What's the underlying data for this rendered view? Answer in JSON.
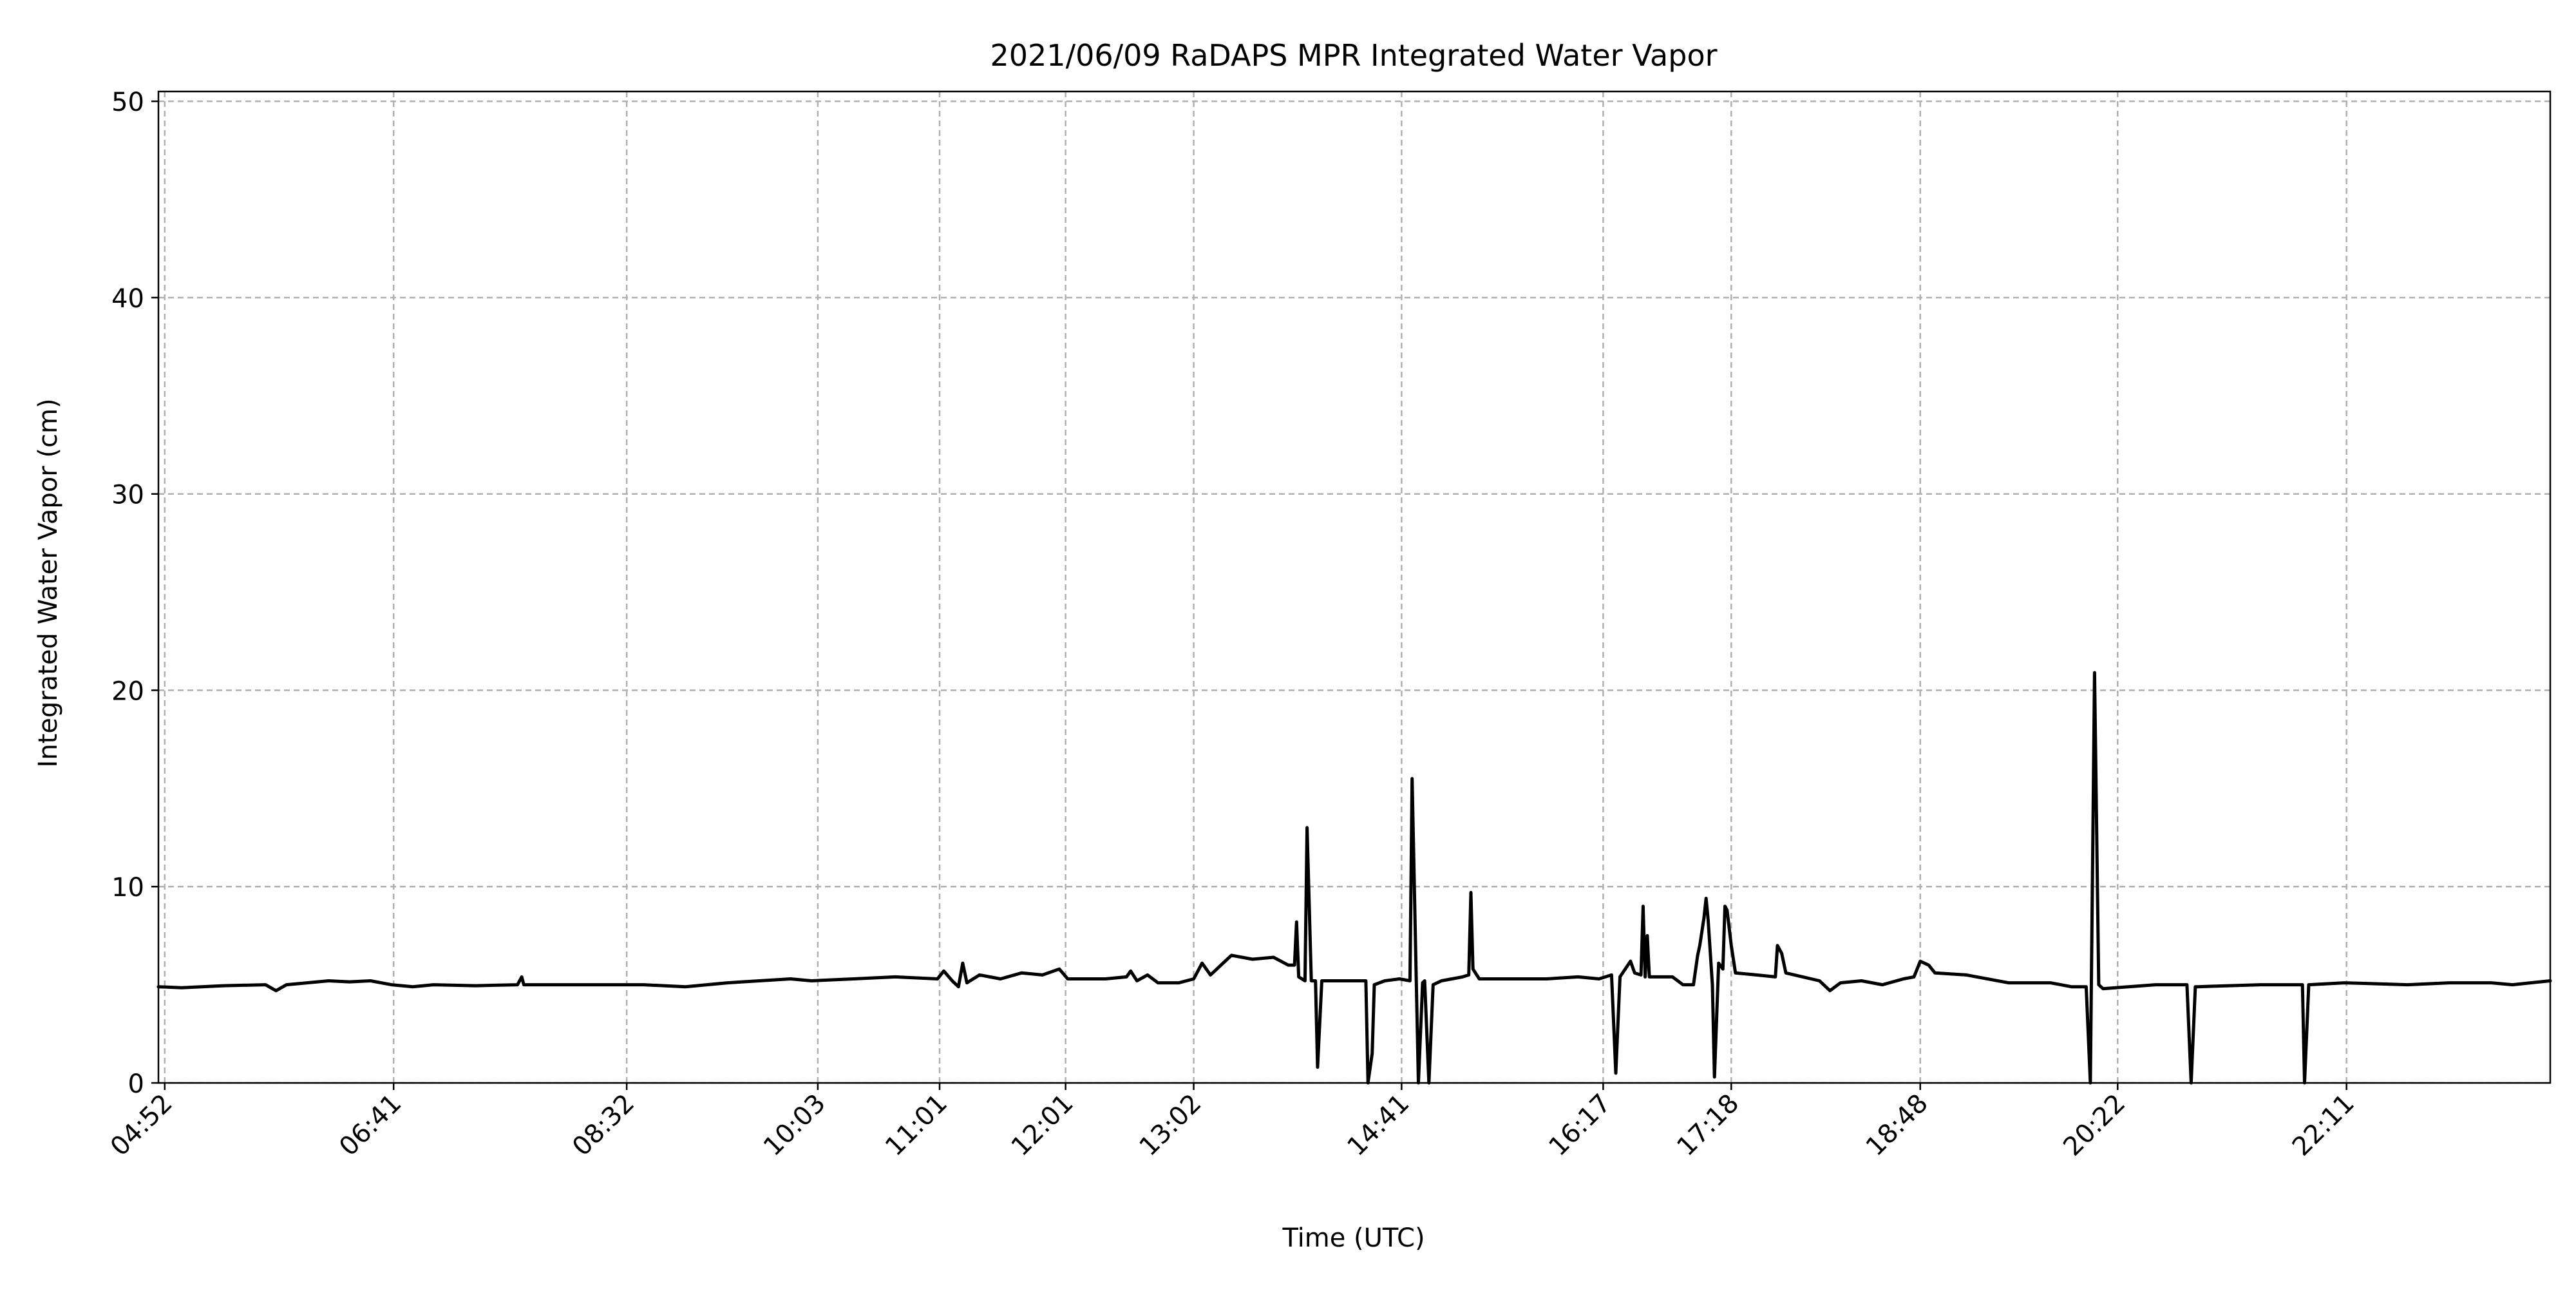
{
  "chart_data": {
    "type": "line",
    "title": "2021/06/09 RaDAPS MPR Integrated Water Vapor",
    "xlabel": "Time (UTC)",
    "ylabel": "Integrated Water Vapor (cm)",
    "x_unit": "minutes UTC",
    "xlim": [
      289,
      1428
    ],
    "ylim": [
      0,
      50.5
    ],
    "x_ticks": [
      {
        "time": 292,
        "label": "04:52"
      },
      {
        "time": 401,
        "label": "06:41"
      },
      {
        "time": 512,
        "label": "08:32"
      },
      {
        "time": 603,
        "label": "10:03"
      },
      {
        "time": 661,
        "label": "11:01"
      },
      {
        "time": 721,
        "label": "12:01"
      },
      {
        "time": 782,
        "label": "13:02"
      },
      {
        "time": 881,
        "label": "14:41"
      },
      {
        "time": 977,
        "label": "16:17"
      },
      {
        "time": 1038,
        "label": "17:18"
      },
      {
        "time": 1128,
        "label": "18:48"
      },
      {
        "time": 1222,
        "label": "20:22"
      },
      {
        "time": 1331,
        "label": "22:11"
      }
    ],
    "y_ticks": [
      {
        "value": 0,
        "label": "0"
      },
      {
        "value": 10,
        "label": "10"
      },
      {
        "value": 20,
        "label": "20"
      },
      {
        "value": 30,
        "label": "30"
      },
      {
        "value": 40,
        "label": "40"
      },
      {
        "value": 50,
        "label": "50"
      }
    ],
    "grid": true,
    "colors": {
      "line": "#000000",
      "grid": "#b0b0b0",
      "background": "#ffffff"
    },
    "series": [
      {
        "color": "#000000",
        "points": [
          [
            289,
            4.9
          ],
          [
            300,
            4.85
          ],
          [
            320,
            4.95
          ],
          [
            340,
            5.0
          ],
          [
            345,
            4.7
          ],
          [
            350,
            5.0
          ],
          [
            370,
            5.2
          ],
          [
            380,
            5.15
          ],
          [
            390,
            5.2
          ],
          [
            400,
            5.0
          ],
          [
            410,
            4.9
          ],
          [
            420,
            5.0
          ],
          [
            440,
            4.95
          ],
          [
            460,
            5.0
          ],
          [
            462,
            5.4
          ],
          [
            463,
            5.0
          ],
          [
            480,
            5.0
          ],
          [
            500,
            5.0
          ],
          [
            520,
            5.0
          ],
          [
            540,
            4.9
          ],
          [
            560,
            5.1
          ],
          [
            590,
            5.3
          ],
          [
            600,
            5.2
          ],
          [
            620,
            5.3
          ],
          [
            640,
            5.4
          ],
          [
            660,
            5.3
          ],
          [
            663,
            5.7
          ],
          [
            667,
            5.2
          ],
          [
            670,
            4.9
          ],
          [
            672,
            6.1
          ],
          [
            674,
            5.1
          ],
          [
            680,
            5.5
          ],
          [
            690,
            5.3
          ],
          [
            700,
            5.6
          ],
          [
            710,
            5.5
          ],
          [
            718,
            5.8
          ],
          [
            722,
            5.3
          ],
          [
            740,
            5.3
          ],
          [
            750,
            5.4
          ],
          [
            752,
            5.7
          ],
          [
            755,
            5.2
          ],
          [
            760,
            5.5
          ],
          [
            765,
            5.1
          ],
          [
            775,
            5.1
          ],
          [
            782,
            5.3
          ],
          [
            786,
            6.1
          ],
          [
            790,
            5.5
          ],
          [
            800,
            6.5
          ],
          [
            810,
            6.3
          ],
          [
            820,
            6.4
          ],
          [
            827,
            6.0
          ],
          [
            830,
            6.0
          ],
          [
            831,
            8.2
          ],
          [
            832,
            5.4
          ],
          [
            835,
            5.2
          ],
          [
            836,
            13.0
          ],
          [
            838,
            5.2
          ],
          [
            840,
            5.2
          ],
          [
            841,
            0.8
          ],
          [
            843,
            5.2
          ],
          [
            850,
            5.2
          ],
          [
            864,
            5.2
          ],
          [
            865,
            0.0
          ],
          [
            867,
            1.5
          ],
          [
            868,
            5.0
          ],
          [
            873,
            5.2
          ],
          [
            880,
            5.3
          ],
          [
            885,
            5.2
          ],
          [
            886,
            15.5
          ],
          [
            888,
            5.2
          ],
          [
            889,
            0.0
          ],
          [
            891,
            5.1
          ],
          [
            892,
            5.2
          ],
          [
            894,
            0.0
          ],
          [
            896,
            5.0
          ],
          [
            900,
            5.2
          ],
          [
            905,
            5.3
          ],
          [
            910,
            5.4
          ],
          [
            913,
            5.5
          ],
          [
            914,
            9.7
          ],
          [
            915,
            5.8
          ],
          [
            918,
            5.3
          ],
          [
            930,
            5.3
          ],
          [
            950,
            5.3
          ],
          [
            965,
            5.4
          ],
          [
            975,
            5.3
          ],
          [
            981,
            5.5
          ],
          [
            983,
            0.5
          ],
          [
            985,
            5.4
          ],
          [
            990,
            6.2
          ],
          [
            992,
            5.6
          ],
          [
            995,
            5.5
          ],
          [
            996,
            9.0
          ],
          [
            997,
            5.4
          ],
          [
            998,
            7.5
          ],
          [
            999,
            5.4
          ],
          [
            1010,
            5.4
          ],
          [
            1015,
            5.0
          ],
          [
            1020,
            5.0
          ],
          [
            1022,
            6.5
          ],
          [
            1023,
            7.0
          ],
          [
            1025,
            8.4
          ],
          [
            1026,
            9.4
          ],
          [
            1027,
            8.3
          ],
          [
            1029,
            5.0
          ],
          [
            1030,
            0.3
          ],
          [
            1032,
            6.1
          ],
          [
            1034,
            5.8
          ],
          [
            1035,
            9.0
          ],
          [
            1036,
            8.8
          ],
          [
            1038,
            7.0
          ],
          [
            1040,
            5.6
          ],
          [
            1050,
            5.5
          ],
          [
            1059,
            5.4
          ],
          [
            1060,
            7.0
          ],
          [
            1062,
            6.6
          ],
          [
            1064,
            5.6
          ],
          [
            1080,
            5.2
          ],
          [
            1085,
            4.7
          ],
          [
            1090,
            5.1
          ],
          [
            1100,
            5.2
          ],
          [
            1110,
            5.0
          ],
          [
            1120,
            5.3
          ],
          [
            1125,
            5.4
          ],
          [
            1128,
            6.2
          ],
          [
            1132,
            6.0
          ],
          [
            1135,
            5.6
          ],
          [
            1150,
            5.5
          ],
          [
            1170,
            5.1
          ],
          [
            1190,
            5.1
          ],
          [
            1200,
            4.9
          ],
          [
            1207,
            4.9
          ],
          [
            1209,
            0.0
          ],
          [
            1211,
            20.9
          ],
          [
            1213,
            5.0
          ],
          [
            1215,
            4.8
          ],
          [
            1240,
            5.0
          ],
          [
            1255,
            5.0
          ],
          [
            1257,
            0.0
          ],
          [
            1259,
            4.9
          ],
          [
            1260,
            4.9
          ],
          [
            1290,
            5.0
          ],
          [
            1310,
            5.0
          ],
          [
            1311,
            0.0
          ],
          [
            1313,
            5.0
          ],
          [
            1330,
            5.1
          ],
          [
            1360,
            5.0
          ],
          [
            1380,
            5.1
          ],
          [
            1400,
            5.1
          ],
          [
            1410,
            5.0
          ],
          [
            1428,
            5.2
          ]
        ]
      }
    ]
  }
}
